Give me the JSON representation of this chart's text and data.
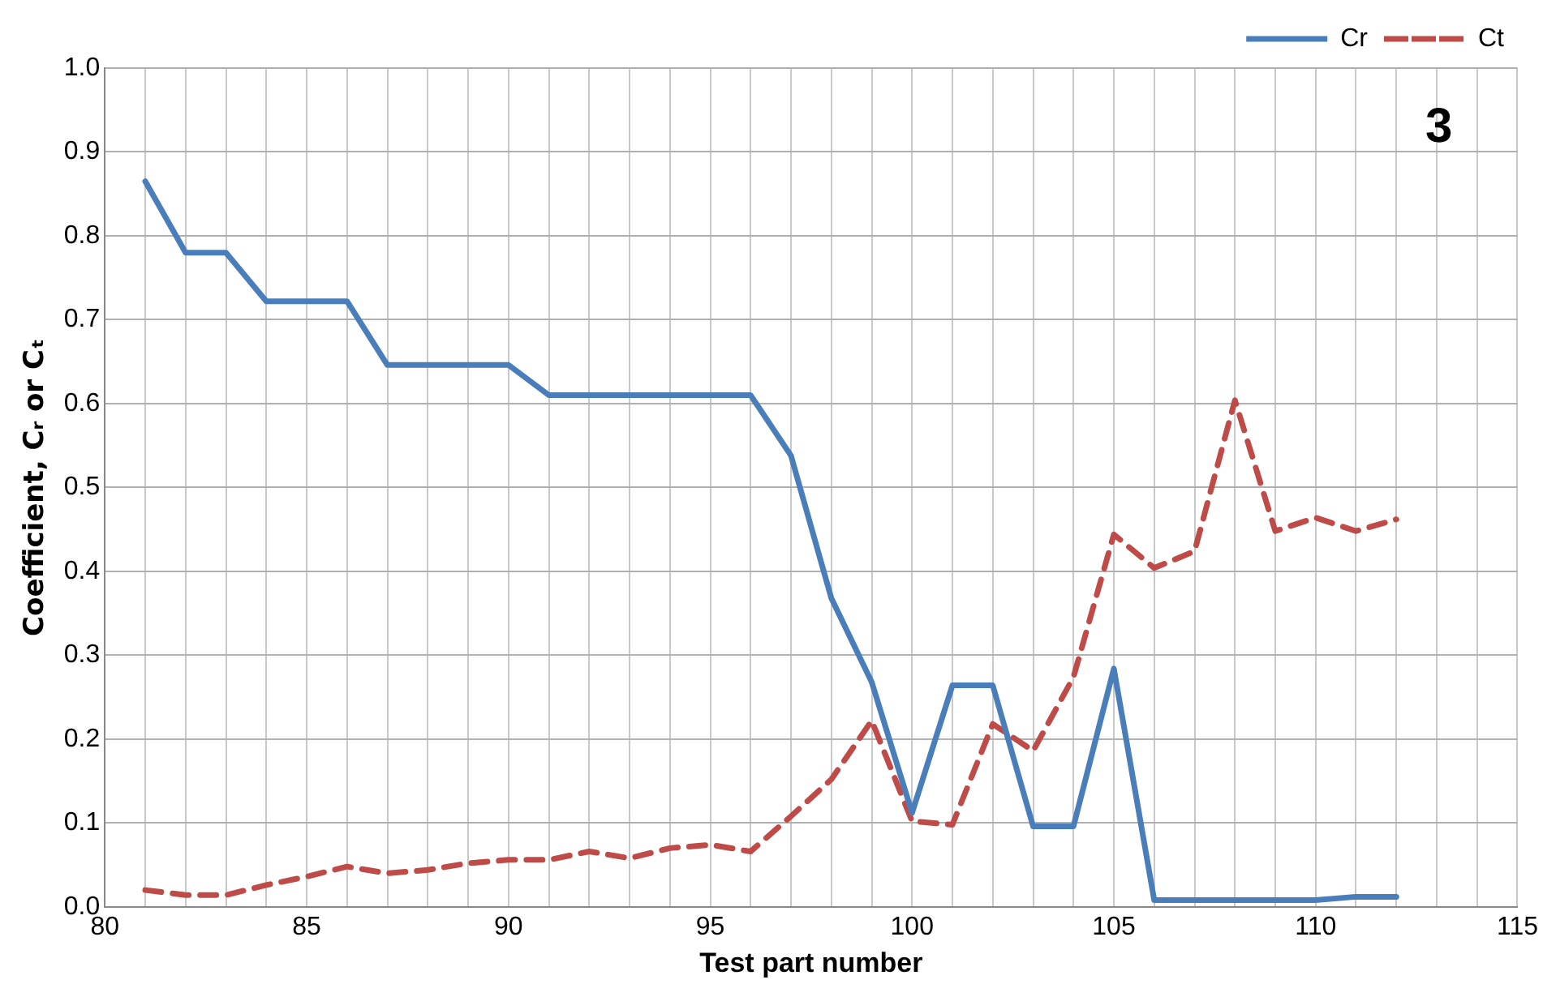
{
  "chart_data": {
    "type": "line",
    "xlabel": "Test part number",
    "ylabel": "Coefficient, Cᵣ or Cₜ",
    "annotations": [
      "3"
    ],
    "x": [
      81,
      82,
      83,
      84,
      85,
      86,
      87,
      88,
      89,
      90,
      91,
      92,
      93,
      94,
      95,
      96,
      97,
      98,
      99,
      100,
      101,
      102,
      103,
      104,
      105,
      106,
      107,
      108,
      109,
      110,
      111,
      112
    ],
    "series": [
      {
        "name": "Cr",
        "color": "#4a7ebb",
        "line_style": "solid",
        "values": [
          0.865,
          0.78,
          0.78,
          0.722,
          0.722,
          0.722,
          0.646,
          0.646,
          0.646,
          0.646,
          0.61,
          0.61,
          0.61,
          0.61,
          0.61,
          0.61,
          0.538,
          0.368,
          0.268,
          0.112,
          0.264,
          0.264,
          0.096,
          0.096,
          0.284,
          0.008,
          0.008,
          0.008,
          0.008,
          0.008,
          0.012,
          0.012
        ]
      },
      {
        "name": "Ct",
        "color": "#be4b48",
        "line_style": "dashed",
        "values": [
          0.02,
          0.014,
          0.014,
          0.026,
          0.036,
          0.048,
          0.04,
          0.044,
          0.052,
          0.056,
          0.056,
          0.066,
          0.058,
          0.07,
          0.074,
          0.066,
          0.108,
          0.152,
          0.222,
          0.102,
          0.098,
          0.218,
          0.186,
          0.274,
          0.444,
          0.404,
          0.424,
          0.604,
          0.448,
          0.464,
          0.448,
          0.462
        ]
      }
    ],
    "xlim": [
      80,
      115
    ],
    "xticks": [
      80,
      {
        "value": 81,
        "label": null
      },
      {
        "value": 82,
        "label": null
      },
      {
        "value": 83,
        "label": null
      },
      {
        "value": 84,
        "label": null
      },
      85,
      {
        "value": 86,
        "label": null
      },
      {
        "value": 87,
        "label": null
      },
      {
        "value": 88,
        "label": null
      },
      {
        "value": 89,
        "label": null
      },
      90,
      {
        "value": 91,
        "label": null
      },
      {
        "value": 92,
        "label": null
      },
      {
        "value": 93,
        "label": null
      },
      {
        "value": 94,
        "label": null
      },
      95,
      {
        "value": 96,
        "label": null
      },
      {
        "value": 97,
        "label": null
      },
      {
        "value": 98,
        "label": null
      },
      {
        "value": 99,
        "label": null
      },
      100,
      {
        "value": 101,
        "label": null
      },
      {
        "value": 102,
        "label": null
      },
      {
        "value": 103,
        "label": null
      },
      {
        "value": 104,
        "label": null
      },
      105,
      {
        "value": 106,
        "label": null
      },
      {
        "value": 107,
        "label": null
      },
      {
        "value": 108,
        "label": null
      },
      {
        "value": 109,
        "label": null
      },
      110,
      {
        "value": 111,
        "label": null
      },
      {
        "value": 112,
        "label": null
      },
      {
        "value": 113,
        "label": null
      },
      {
        "value": 114,
        "label": null
      },
      115
    ],
    "ylim": [
      0,
      1
    ],
    "yticks": [
      {
        "value": 0,
        "label": "0.0"
      },
      {
        "value": 0.1,
        "label": "0.1"
      },
      {
        "value": 0.2,
        "label": "0.2"
      },
      {
        "value": 0.3,
        "label": "0.3"
      },
      {
        "value": 0.4,
        "label": "0.4"
      },
      {
        "value": 0.5,
        "label": "0.5"
      },
      {
        "value": 0.6,
        "label": "0.6"
      },
      {
        "value": 0.7,
        "label": "0.7"
      },
      {
        "value": 0.8,
        "label": "0.8"
      },
      {
        "value": 0.9,
        "label": "0.9"
      },
      {
        "value": 1,
        "label": "1.0"
      }
    ],
    "grid": true,
    "legend": "top right",
    "marker": "none"
  }
}
